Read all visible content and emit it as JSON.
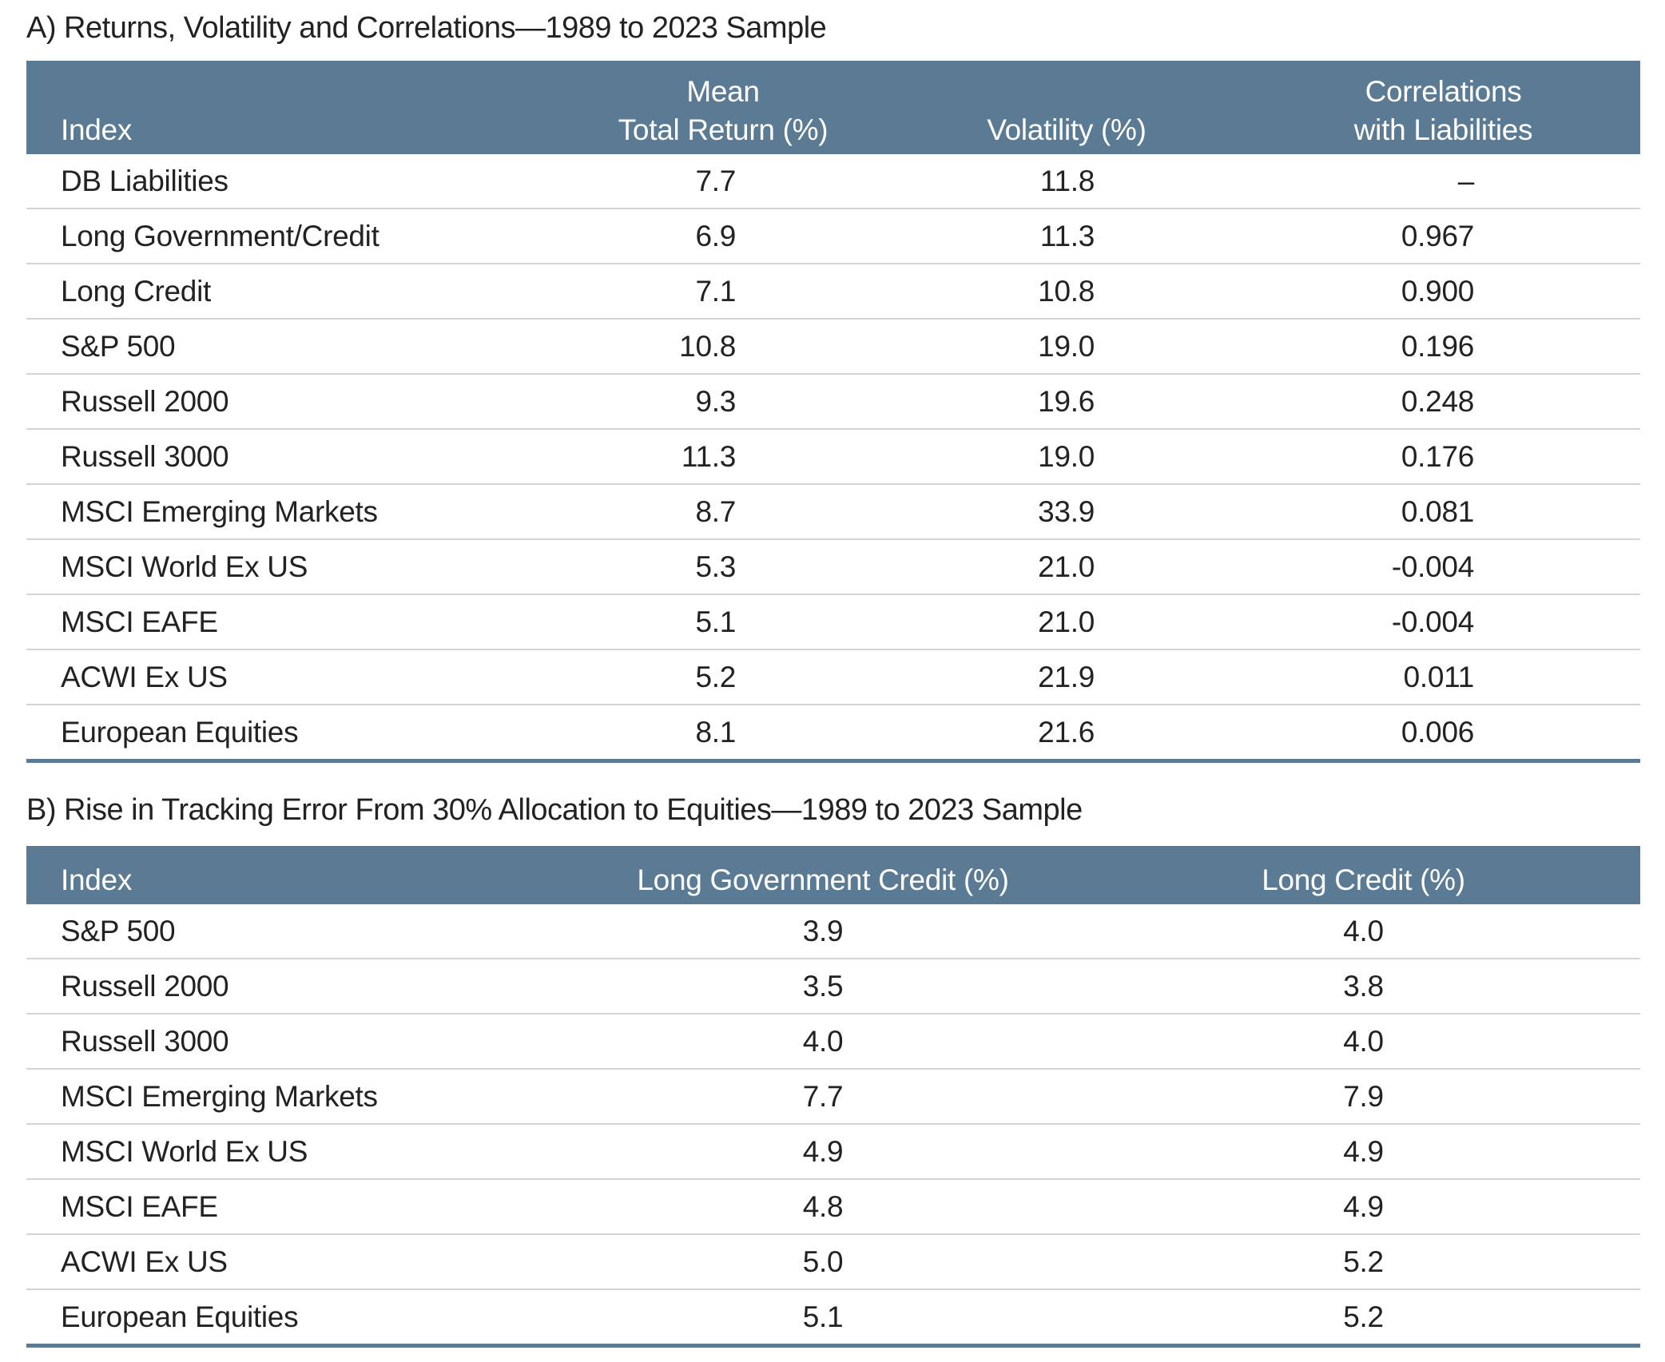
{
  "table_a": {
    "title": "A) Returns, Volatility and Correlations—1989 to 2023 Sample",
    "header": [
      [
        "Index"
      ],
      [
        "Mean",
        "Total Return (%)"
      ],
      [
        "Volatility (%)"
      ],
      [
        "Correlations",
        "with Liabilities"
      ]
    ],
    "rows": [
      [
        "DB Liabilities",
        "7.7",
        "11.8",
        "–"
      ],
      [
        "Long Government/Credit",
        "6.9",
        "11.3",
        "0.967"
      ],
      [
        "Long Credit",
        "7.1",
        "10.8",
        "0.900"
      ],
      [
        "S&P 500",
        "10.8",
        "19.0",
        "0.196"
      ],
      [
        "Russell 2000",
        "9.3",
        "19.6",
        "0.248"
      ],
      [
        "Russell 3000",
        "11.3",
        "19.0",
        "0.176"
      ],
      [
        "MSCI Emerging Markets",
        "8.7",
        "33.9",
        "0.081"
      ],
      [
        "MSCI World Ex US",
        "5.3",
        "21.0",
        "-0.004"
      ],
      [
        "MSCI EAFE",
        "5.1",
        "21.0",
        "-0.004"
      ],
      [
        "ACWI Ex US",
        "5.2",
        "21.9",
        "0.011"
      ],
      [
        "European Equities",
        "8.1",
        "21.6",
        "0.006"
      ]
    ]
  },
  "table_b": {
    "title": "B) Rise in Tracking Error From 30% Allocation to Equities—1989 to 2023 Sample",
    "header": [
      [
        "Index"
      ],
      [
        "Long Government Credit (%)"
      ],
      [
        "Long Credit (%)"
      ]
    ],
    "rows": [
      [
        "S&P 500",
        "3.9",
        "4.0"
      ],
      [
        "Russell 2000",
        "3.5",
        "3.8"
      ],
      [
        "Russell 3000",
        "4.0",
        "4.0"
      ],
      [
        "MSCI Emerging Markets",
        "7.7",
        "7.9"
      ],
      [
        "MSCI World Ex US",
        "4.9",
        "4.9"
      ],
      [
        "MSCI EAFE",
        "4.8",
        "4.9"
      ],
      [
        "ACWI Ex US",
        "5.0",
        "5.2"
      ],
      [
        "European Equities",
        "5.1",
        "5.2"
      ]
    ]
  }
}
